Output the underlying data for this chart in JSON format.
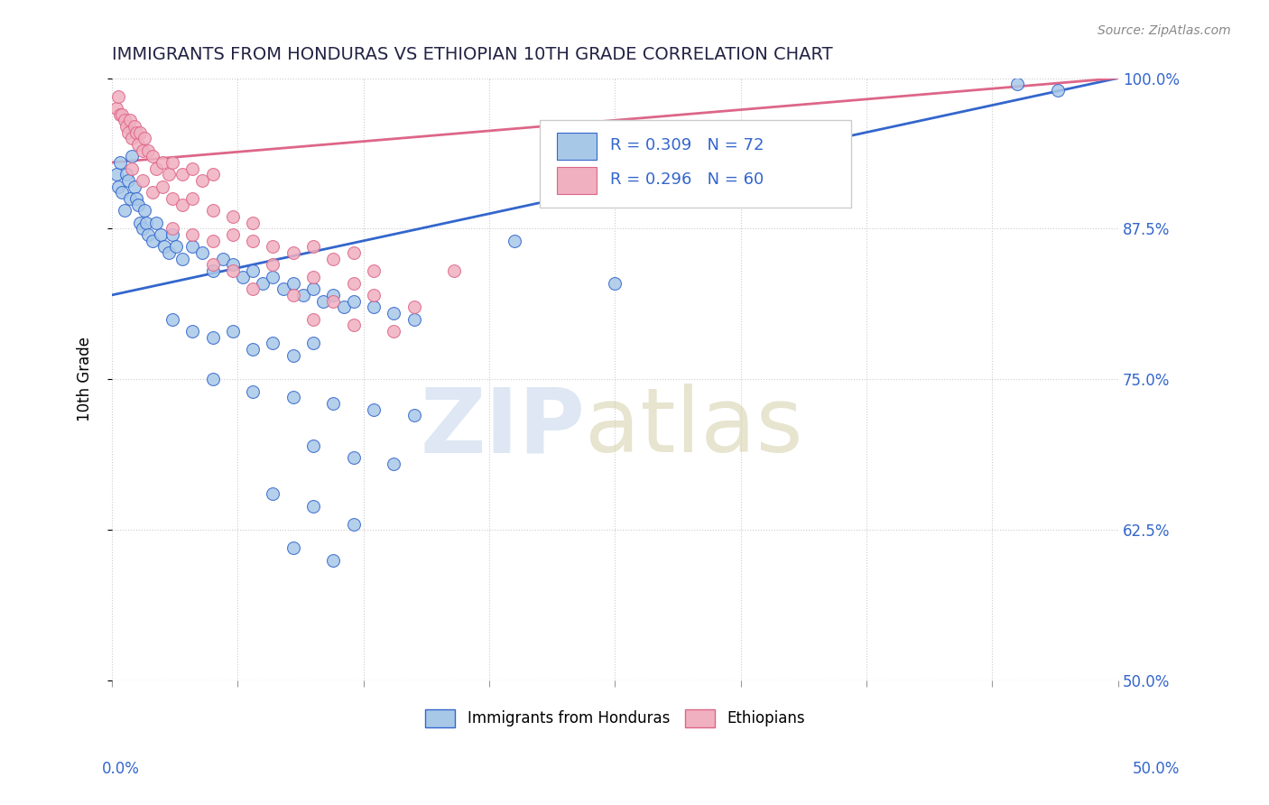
{
  "title": "IMMIGRANTS FROM HONDURAS VS ETHIOPIAN 10TH GRADE CORRELATION CHART",
  "source": "Source: ZipAtlas.com",
  "ylabel_ticks": [
    "50.0%",
    "62.5%",
    "75.0%",
    "87.5%",
    "100.0%"
  ],
  "ylabel_label": "10th Grade",
  "legend_label_blue": "Immigrants from Honduras",
  "legend_label_pink": "Ethiopians",
  "blue_color": "#a8c8e8",
  "pink_color": "#f0b0c0",
  "trend_blue": "#3366cc",
  "trend_pink": "#dd6688",
  "xmin": 0.0,
  "xmax": 50.0,
  "ymin": 50.0,
  "ymax": 100.0,
  "blue_points": [
    [
      0.2,
      92.0
    ],
    [
      0.3,
      91.0
    ],
    [
      0.4,
      93.0
    ],
    [
      0.5,
      90.5
    ],
    [
      0.6,
      89.0
    ],
    [
      0.7,
      92.0
    ],
    [
      0.8,
      91.5
    ],
    [
      0.9,
      90.0
    ],
    [
      1.0,
      93.5
    ],
    [
      1.1,
      91.0
    ],
    [
      1.2,
      90.0
    ],
    [
      1.3,
      89.5
    ],
    [
      1.4,
      88.0
    ],
    [
      1.5,
      87.5
    ],
    [
      1.6,
      89.0
    ],
    [
      1.7,
      88.0
    ],
    [
      1.8,
      87.0
    ],
    [
      2.0,
      86.5
    ],
    [
      2.2,
      88.0
    ],
    [
      2.4,
      87.0
    ],
    [
      2.6,
      86.0
    ],
    [
      2.8,
      85.5
    ],
    [
      3.0,
      87.0
    ],
    [
      3.2,
      86.0
    ],
    [
      3.5,
      85.0
    ],
    [
      4.0,
      86.0
    ],
    [
      4.5,
      85.5
    ],
    [
      5.0,
      84.0
    ],
    [
      5.5,
      85.0
    ],
    [
      6.0,
      84.5
    ],
    [
      6.5,
      83.5
    ],
    [
      7.0,
      84.0
    ],
    [
      7.5,
      83.0
    ],
    [
      8.0,
      83.5
    ],
    [
      8.5,
      82.5
    ],
    [
      9.0,
      83.0
    ],
    [
      9.5,
      82.0
    ],
    [
      10.0,
      82.5
    ],
    [
      10.5,
      81.5
    ],
    [
      11.0,
      82.0
    ],
    [
      11.5,
      81.0
    ],
    [
      12.0,
      81.5
    ],
    [
      13.0,
      81.0
    ],
    [
      14.0,
      80.5
    ],
    [
      15.0,
      80.0
    ],
    [
      3.0,
      80.0
    ],
    [
      4.0,
      79.0
    ],
    [
      5.0,
      78.5
    ],
    [
      6.0,
      79.0
    ],
    [
      7.0,
      77.5
    ],
    [
      8.0,
      78.0
    ],
    [
      9.0,
      77.0
    ],
    [
      10.0,
      78.0
    ],
    [
      5.0,
      75.0
    ],
    [
      7.0,
      74.0
    ],
    [
      9.0,
      73.5
    ],
    [
      11.0,
      73.0
    ],
    [
      13.0,
      72.5
    ],
    [
      15.0,
      72.0
    ],
    [
      10.0,
      69.5
    ],
    [
      12.0,
      68.5
    ],
    [
      14.0,
      68.0
    ],
    [
      8.0,
      65.5
    ],
    [
      10.0,
      64.5
    ],
    [
      12.0,
      63.0
    ],
    [
      9.0,
      61.0
    ],
    [
      11.0,
      60.0
    ],
    [
      20.0,
      86.5
    ],
    [
      25.0,
      83.0
    ],
    [
      45.0,
      99.5
    ],
    [
      47.0,
      99.0
    ]
  ],
  "pink_points": [
    [
      0.2,
      97.5
    ],
    [
      0.3,
      98.5
    ],
    [
      0.4,
      97.0
    ],
    [
      0.5,
      97.0
    ],
    [
      0.6,
      96.5
    ],
    [
      0.7,
      96.0
    ],
    [
      0.8,
      95.5
    ],
    [
      0.9,
      96.5
    ],
    [
      1.0,
      95.0
    ],
    [
      1.1,
      96.0
    ],
    [
      1.2,
      95.5
    ],
    [
      1.3,
      94.5
    ],
    [
      1.4,
      95.5
    ],
    [
      1.5,
      94.0
    ],
    [
      1.6,
      95.0
    ],
    [
      1.8,
      94.0
    ],
    [
      2.0,
      93.5
    ],
    [
      2.2,
      92.5
    ],
    [
      2.5,
      93.0
    ],
    [
      2.8,
      92.0
    ],
    [
      3.0,
      93.0
    ],
    [
      3.5,
      92.0
    ],
    [
      4.0,
      92.5
    ],
    [
      4.5,
      91.5
    ],
    [
      5.0,
      92.0
    ],
    [
      1.0,
      92.5
    ],
    [
      1.5,
      91.5
    ],
    [
      2.0,
      90.5
    ],
    [
      2.5,
      91.0
    ],
    [
      3.0,
      90.0
    ],
    [
      3.5,
      89.5
    ],
    [
      4.0,
      90.0
    ],
    [
      5.0,
      89.0
    ],
    [
      6.0,
      88.5
    ],
    [
      7.0,
      88.0
    ],
    [
      3.0,
      87.5
    ],
    [
      4.0,
      87.0
    ],
    [
      5.0,
      86.5
    ],
    [
      6.0,
      87.0
    ],
    [
      7.0,
      86.5
    ],
    [
      8.0,
      86.0
    ],
    [
      9.0,
      85.5
    ],
    [
      10.0,
      86.0
    ],
    [
      11.0,
      85.0
    ],
    [
      12.0,
      85.5
    ],
    [
      5.0,
      84.5
    ],
    [
      6.0,
      84.0
    ],
    [
      8.0,
      84.5
    ],
    [
      10.0,
      83.5
    ],
    [
      12.0,
      83.0
    ],
    [
      7.0,
      82.5
    ],
    [
      9.0,
      82.0
    ],
    [
      11.0,
      81.5
    ],
    [
      13.0,
      82.0
    ],
    [
      15.0,
      81.0
    ],
    [
      10.0,
      80.0
    ],
    [
      12.0,
      79.5
    ],
    [
      14.0,
      79.0
    ],
    [
      13.0,
      84.0
    ],
    [
      17.0,
      84.0
    ]
  ]
}
